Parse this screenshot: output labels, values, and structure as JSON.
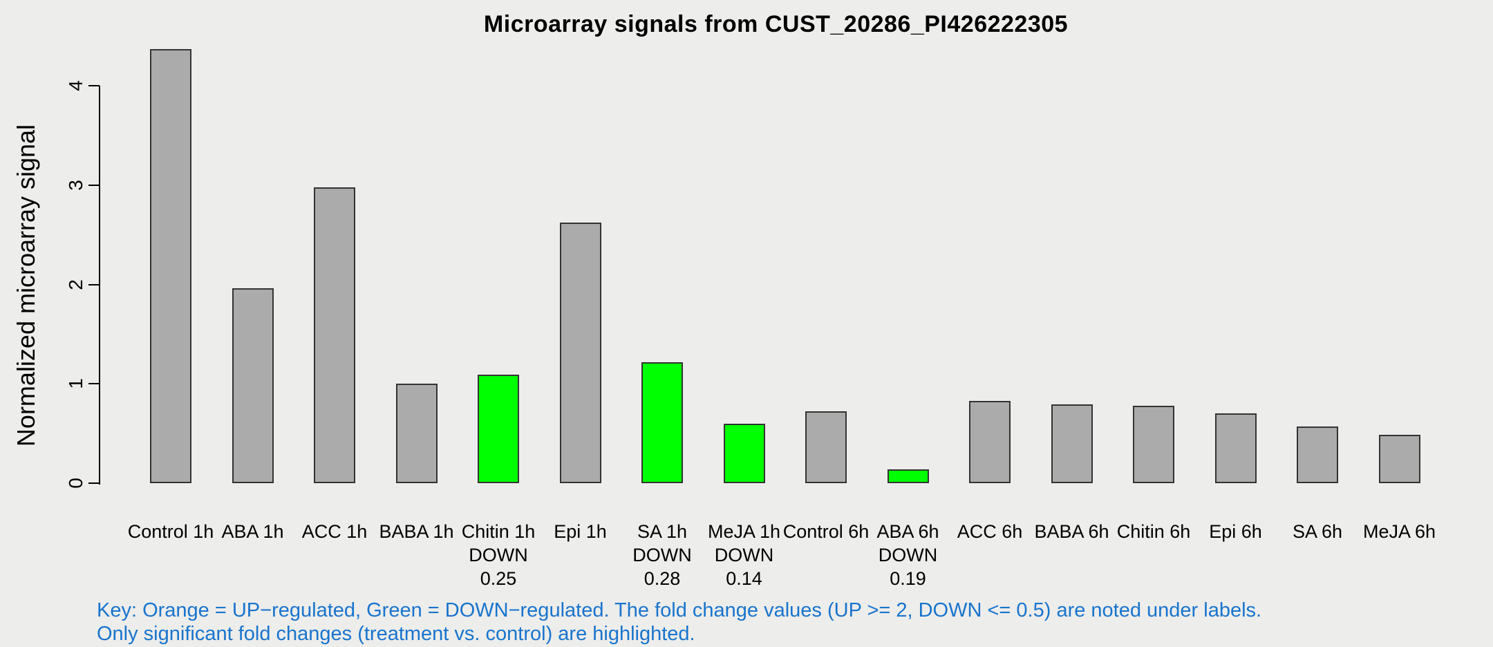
{
  "title": "Microarray signals from CUST_20286_PI426222305",
  "ylabel": "Normalized microarray signal",
  "key": {
    "line1": "Key: Orange = UP−regulated, Green = DOWN−regulated. The fold change values (UP >= 2, DOWN <= 0.5) are noted under labels.",
    "line2": "Only significant fold changes (treatment vs. control) are highlighted."
  },
  "colors": {
    "background": "#EDEDEB",
    "bar_default": "#ABABAB",
    "bar_down_highlight": "#00FF00",
    "bar_up_highlight": "#FFA500",
    "bar_border": "#333333",
    "key_text": "#1874CD",
    "axis_text": "#000000"
  },
  "chart_data": {
    "type": "bar",
    "title": "Microarray signals from CUST_20286_PI426222305",
    "xlabel": "",
    "ylabel": "Normalized microarray signal",
    "ylim": [
      0,
      4.4
    ],
    "yticks": [
      0,
      1,
      2,
      3,
      4
    ],
    "grid": false,
    "legend": false,
    "categories": [
      "Control 1h",
      "ABA 1h",
      "ACC 1h",
      "BABA 1h",
      "Chitin 1h",
      "Epi 1h",
      "SA 1h",
      "MeJA 1h",
      "Control 6h",
      "ABA 6h",
      "ACC 6h",
      "BABA 6h",
      "Chitin 6h",
      "Epi 6h",
      "SA 6h",
      "MeJA 6h"
    ],
    "values": [
      4.37,
      1.96,
      2.98,
      1.0,
      1.09,
      2.62,
      1.22,
      0.6,
      0.72,
      0.14,
      0.83,
      0.79,
      0.78,
      0.7,
      0.57,
      0.49
    ],
    "bar_states": [
      "normal",
      "normal",
      "normal",
      "normal",
      "down",
      "normal",
      "down",
      "down",
      "normal",
      "down",
      "normal",
      "normal",
      "normal",
      "normal",
      "normal",
      "normal"
    ],
    "down_label": "DOWN",
    "fold_change_notes": [
      null,
      null,
      null,
      null,
      "0.25",
      null,
      "0.28",
      "0.14",
      null,
      "0.19",
      null,
      null,
      null,
      null,
      null,
      null
    ]
  }
}
